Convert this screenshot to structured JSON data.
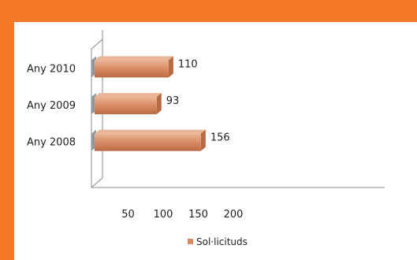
{
  "colors": {
    "frame": "#f47a2a",
    "panel": "#ffffff",
    "bar": "#d98b63",
    "bar_shade": "#b86a44",
    "bar_light": "#eab596",
    "depth_side": "#8e9aa3",
    "axis": "#888888"
  },
  "chart_data": {
    "type": "bar",
    "orientation": "horizontal",
    "three_d": true,
    "categories": [
      "Any 2008",
      "Any 2009",
      "Any 2010"
    ],
    "series": [
      {
        "name": "Sol·licituds",
        "values": [
          156,
          93,
          110
        ]
      }
    ],
    "data_labels": [
      "156",
      "93",
      "110"
    ],
    "x_ticks": [
      "50",
      "100",
      "150",
      "200"
    ],
    "xlim": [
      0,
      200
    ],
    "legend_position": "bottom",
    "grid": false
  }
}
